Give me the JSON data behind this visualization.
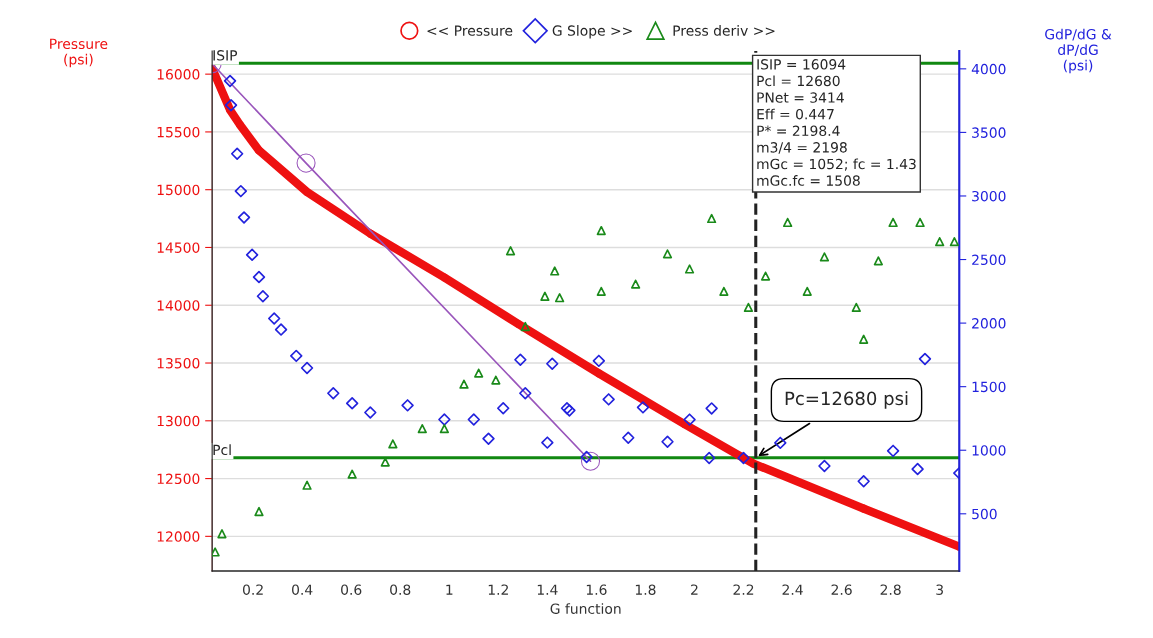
{
  "chart_data": {
    "type": "scatter",
    "xlabel": "G function",
    "ylabel": "Pressure\n(psi)",
    "y2label": "GdP/dG &\ndP/dG\n(psi)",
    "xlim": [
      0.033,
      3.08
    ],
    "xticks": [
      0.2,
      0.4,
      0.6,
      0.8,
      1,
      1.2,
      1.4,
      1.6,
      1.8,
      2,
      2.2,
      2.4,
      2.6,
      2.8,
      3
    ],
    "ylim": [
      11700,
      16200
    ],
    "yticks": [
      12000,
      12500,
      13000,
      13500,
      14000,
      14500,
      15000,
      15500,
      16000
    ],
    "y2lim": [
      50,
      4140
    ],
    "y2ticks": [
      500,
      1000,
      1500,
      2000,
      2500,
      3000,
      3500,
      4000
    ],
    "grid": "y",
    "legend": "top",
    "series": [
      {
        "name": "<< Pressure",
        "type": "line",
        "color": "#ee1111",
        "marker": "circle",
        "x": [
          0.033,
          0.106,
          0.147,
          0.224,
          0.42,
          0.678,
          0.98,
          1.28,
          1.61,
          1.96,
          2.24,
          2.69,
          3.08
        ],
        "values": [
          16050,
          15690,
          15560,
          15340,
          14980,
          14620,
          14240,
          13840,
          13410,
          12970,
          12630,
          12240,
          11910
        ]
      },
      {
        "name": "G Slope >>",
        "axis": "y2",
        "color": "#2222dd",
        "marker": "diamond",
        "x": [
          0.106,
          0.11,
          0.135,
          0.15,
          0.163,
          0.196,
          0.224,
          0.24,
          0.286,
          0.314,
          0.376,
          0.42,
          0.527,
          0.604,
          0.678,
          0.83,
          0.98,
          1.1,
          1.16,
          1.22,
          1.29,
          1.31,
          1.4,
          1.42,
          1.48,
          1.49,
          1.56,
          1.61,
          1.65,
          1.73,
          1.79,
          1.89,
          1.98,
          2.06,
          2.07,
          2.2,
          2.35,
          2.53,
          2.69,
          2.81,
          2.91,
          2.94,
          3.08
        ],
        "values": [
          3905,
          3714,
          3332,
          3038,
          2831,
          2537,
          2362,
          2211,
          2036,
          1949,
          1742,
          1647,
          1448,
          1369,
          1297,
          1353,
          1242,
          1242,
          1091,
          1330,
          1712,
          1448,
          1060,
          1680,
          1330,
          1313,
          947,
          1703,
          1400,
          1098,
          1337,
          1067,
          1241,
          939,
          1329,
          939,
          1058,
          876,
          756,
          995,
          852,
          1718,
          820
        ]
      },
      {
        "name": "Press deriv >>",
        "axis": "y2",
        "color": "#1a8a1a",
        "marker": "triangle",
        "x": [
          0.045,
          0.073,
          0.224,
          0.42,
          0.604,
          0.739,
          0.77,
          0.89,
          0.98,
          1.06,
          1.12,
          1.19,
          1.25,
          1.31,
          1.39,
          1.43,
          1.45,
          1.62,
          1.62,
          1.76,
          1.89,
          1.98,
          2.07,
          2.12,
          2.22,
          2.29,
          2.38,
          2.46,
          2.53,
          2.66,
          2.69,
          2.75,
          2.81,
          2.92,
          3.0,
          3.06
        ],
        "values": [
          200,
          343,
          518,
          725,
          812,
          907,
          1050,
          1170,
          1170,
          1520,
          1607,
          1552,
          2569,
          1973,
          2211,
          2410,
          2200,
          2728,
          2250,
          2307,
          2545,
          2426,
          2823,
          2250,
          2124,
          2370,
          2792,
          2250,
          2521,
          2124,
          1873,
          2490,
          2792,
          2792,
          2641,
          2641
        ]
      },
      {
        "type": "line",
        "color": "#9955bb",
        "marker": "circle",
        "x": [
          0.033,
          0.416,
          1.576
        ],
        "values": [
          16090,
          15230,
          12650
        ]
      }
    ],
    "ref_lines": [
      {
        "axis": "y",
        "value": 16094,
        "label": "ISIP",
        "color": "#118811",
        "line_style": "solid"
      },
      {
        "axis": "y",
        "value": 12680,
        "label": "Pcl",
        "color": "#118811",
        "line_style": "solid"
      },
      {
        "axis": "x",
        "value": 2.25,
        "color": "#222222",
        "line_style": "dashed"
      }
    ],
    "annotations": [
      "ISIP = 16094\nPcl = 12680\nPNet = 3414\nEff = 0.447\nP* = 2198.4\nm3/4 = 2198\nmGc = 1052; fc = 1.43\nmGc.fc = 1508",
      {
        "text": "Pc=12680 psi",
        "x": 2.25,
        "y": 12680
      }
    ]
  }
}
